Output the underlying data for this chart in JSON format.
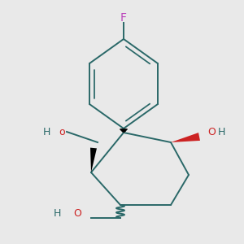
{
  "bg_color": "#e9e9e9",
  "bond_color": "#2a6868",
  "F_color": "#bb44bb",
  "O_color": "#cc2222",
  "H_color": "#2a6868",
  "black": "#000000",
  "figsize": [
    3.0,
    3.0
  ],
  "dpi": 100,
  "xlim": [
    0,
    300
  ],
  "ylim": [
    0,
    300
  ]
}
